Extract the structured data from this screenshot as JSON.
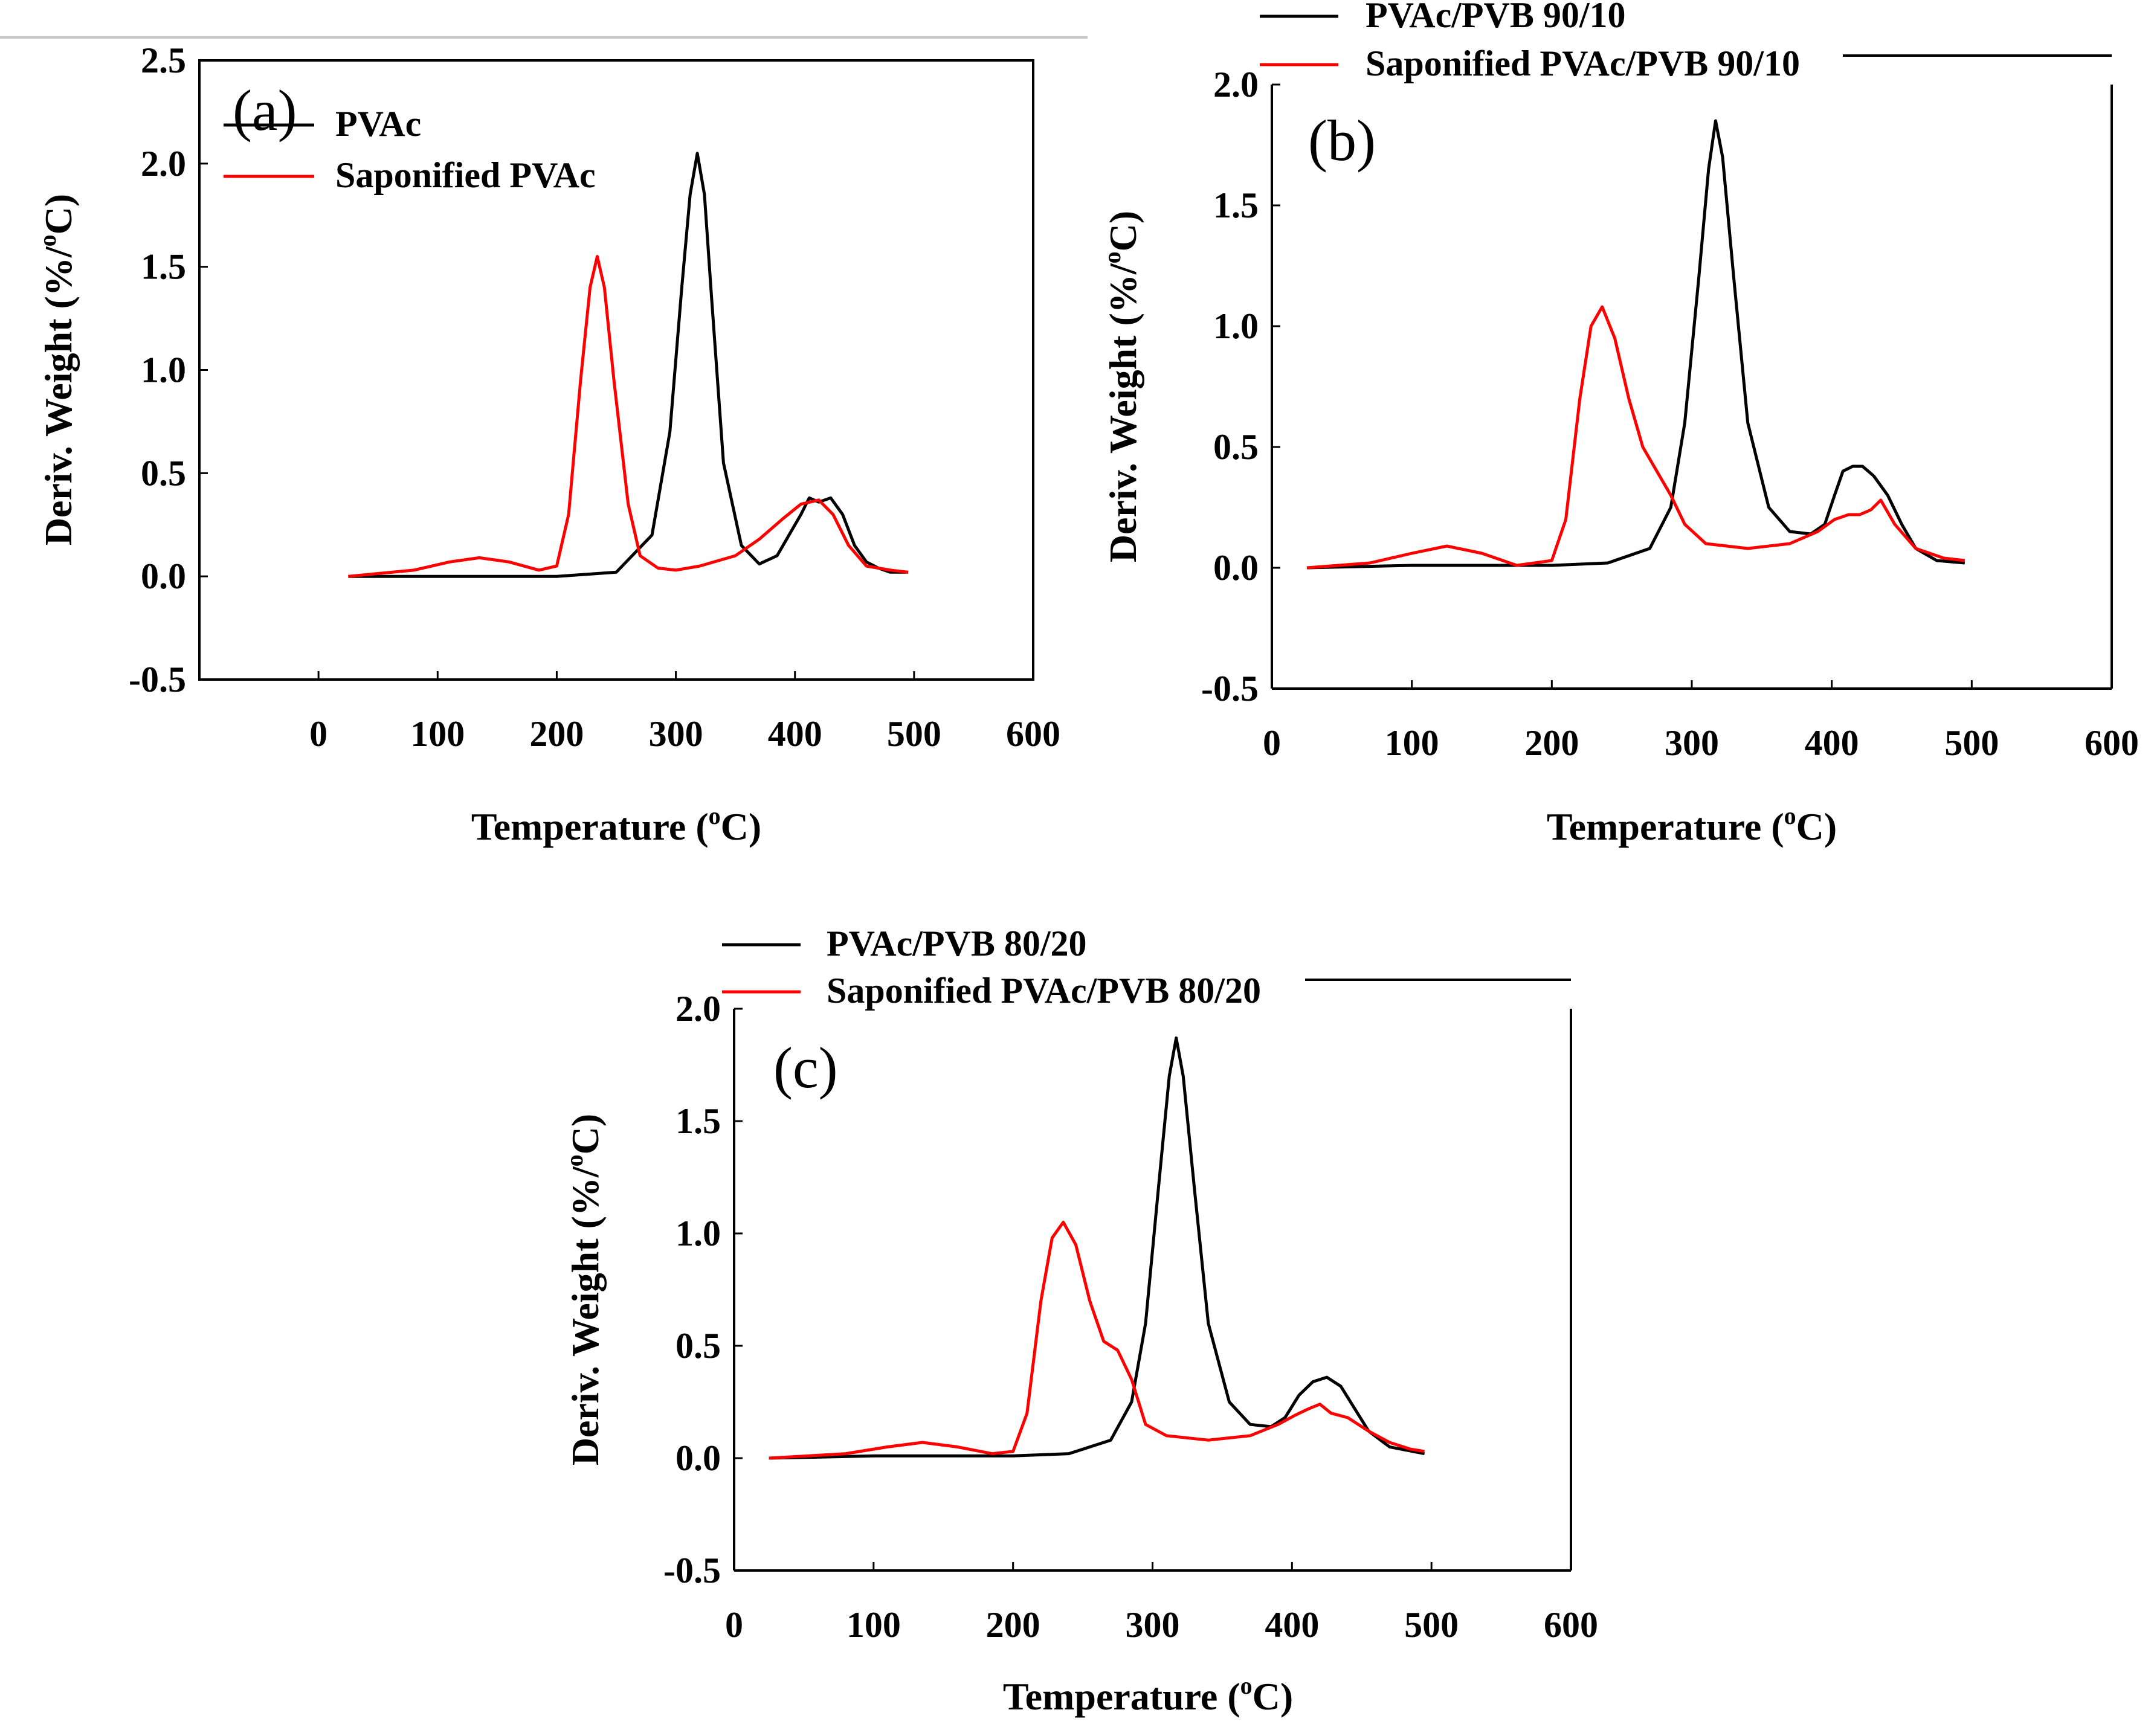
{
  "chart_data": [
    {
      "panel": "(a)",
      "type": "line",
      "xlabel": "Temperature (",
      "xlabel_sup": "o",
      "xlabel_tail": "C)",
      "ylabel": "Deriv. Weight (%/",
      "ylabel_sup": "o",
      "ylabel_tail": "C)",
      "xlim": [
        -100,
        600
      ],
      "ylim": [
        -0.5,
        2.5
      ],
      "xticks": [
        0,
        100,
        200,
        300,
        400,
        500,
        600
      ],
      "xtick_labels": [
        "0",
        "100",
        "200",
        "300",
        "400",
        "500",
        "600"
      ],
      "yticks": [
        -0.5,
        0.0,
        0.5,
        1.0,
        1.5,
        2.0,
        2.5
      ],
      "ytick_labels": [
        "-0.5",
        "0.0",
        "0.5",
        "1.0",
        "1.5",
        "2.0",
        "2.5"
      ],
      "legend_position": "top-left",
      "series": [
        {
          "name": "PVAc",
          "color": "#000000",
          "x": [
            25,
            100,
            200,
            250,
            280,
            295,
            305,
            312,
            318,
            324,
            330,
            340,
            355,
            370,
            385,
            395,
            405,
            412,
            420,
            430,
            440,
            450,
            460,
            470,
            480,
            495
          ],
          "y": [
            0.0,
            0.0,
            0.0,
            0.02,
            0.2,
            0.7,
            1.4,
            1.85,
            2.05,
            1.85,
            1.35,
            0.55,
            0.15,
            0.06,
            0.1,
            0.2,
            0.3,
            0.38,
            0.36,
            0.38,
            0.3,
            0.15,
            0.07,
            0.04,
            0.02,
            0.02
          ]
        },
        {
          "name": "Saponified PVAc",
          "color": "#ff0000",
          "x": [
            25,
            80,
            110,
            135,
            160,
            185,
            200,
            210,
            220,
            228,
            234,
            240,
            248,
            260,
            270,
            285,
            300,
            320,
            350,
            370,
            390,
            405,
            420,
            432,
            445,
            460,
            480,
            495
          ],
          "y": [
            0.0,
            0.03,
            0.07,
            0.09,
            0.07,
            0.03,
            0.05,
            0.3,
            0.95,
            1.4,
            1.55,
            1.4,
            0.95,
            0.35,
            0.1,
            0.04,
            0.03,
            0.05,
            0.1,
            0.18,
            0.28,
            0.35,
            0.37,
            0.3,
            0.15,
            0.05,
            0.03,
            0.02
          ]
        }
      ]
    },
    {
      "panel": "(b)",
      "type": "line",
      "xlabel": "Temperature (",
      "xlabel_sup": "o",
      "xlabel_tail": "C)",
      "ylabel": "Deriv. Weight (%/",
      "ylabel_sup": "o",
      "ylabel_tail": "C)",
      "xlim": [
        0,
        600
      ],
      "ylim": [
        -0.5,
        2.0
      ],
      "xticks": [
        0,
        100,
        200,
        300,
        400,
        500,
        600
      ],
      "xtick_labels": [
        "0",
        "100",
        "200",
        "300",
        "400",
        "500",
        "600"
      ],
      "yticks": [
        -0.5,
        0.0,
        0.5,
        1.0,
        1.5,
        2.0
      ],
      "ytick_labels": [
        "-0.5",
        "0.0",
        "0.5",
        "1.0",
        "1.5",
        "2.0"
      ],
      "legend_position": "above-top-left",
      "series": [
        {
          "name": "PVAc/PVB 90/10",
          "color": "#000000",
          "x": [
            25,
            100,
            200,
            240,
            270,
            285,
            295,
            305,
            312,
            317,
            322,
            330,
            340,
            355,
            370,
            385,
            395,
            402,
            408,
            415,
            422,
            430,
            440,
            450,
            460,
            475,
            495
          ],
          "y": [
            0.0,
            0.01,
            0.01,
            0.02,
            0.08,
            0.25,
            0.6,
            1.2,
            1.65,
            1.85,
            1.7,
            1.2,
            0.6,
            0.25,
            0.15,
            0.14,
            0.18,
            0.3,
            0.4,
            0.42,
            0.42,
            0.38,
            0.3,
            0.18,
            0.08,
            0.03,
            0.02
          ]
        },
        {
          "name": "Saponified PVAc/PVB 90/10",
          "color": "#ff0000",
          "x": [
            25,
            70,
            100,
            125,
            150,
            175,
            200,
            210,
            220,
            228,
            236,
            245,
            255,
            265,
            275,
            285,
            295,
            310,
            340,
            370,
            390,
            402,
            412,
            420,
            428,
            435,
            445,
            460,
            480,
            495
          ],
          "y": [
            0.0,
            0.02,
            0.06,
            0.09,
            0.06,
            0.01,
            0.03,
            0.2,
            0.7,
            1.0,
            1.08,
            0.95,
            0.7,
            0.5,
            0.4,
            0.3,
            0.18,
            0.1,
            0.08,
            0.1,
            0.15,
            0.2,
            0.22,
            0.22,
            0.24,
            0.28,
            0.18,
            0.08,
            0.04,
            0.03
          ]
        }
      ]
    },
    {
      "panel": "(c)",
      "type": "line",
      "xlabel": "Temperature (",
      "xlabel_sup": "o",
      "xlabel_tail": "C)",
      "ylabel": "Deriv. Weight (%/",
      "ylabel_sup": "o",
      "ylabel_tail": "C)",
      "xlim": [
        0,
        600
      ],
      "ylim": [
        -0.5,
        2.0
      ],
      "xticks": [
        0,
        100,
        200,
        300,
        400,
        500,
        600
      ],
      "xtick_labels": [
        "0",
        "100",
        "200",
        "300",
        "400",
        "500",
        "600"
      ],
      "yticks": [
        -0.5,
        0.0,
        0.5,
        1.0,
        1.5,
        2.0
      ],
      "ytick_labels": [
        "-0.5",
        "0.0",
        "0.5",
        "1.0",
        "1.5",
        "2.0"
      ],
      "legend_position": "above-top-left",
      "series": [
        {
          "name": "PVAc/PVB 80/20",
          "color": "#000000",
          "x": [
            25,
            100,
            200,
            240,
            270,
            285,
            295,
            305,
            312,
            317,
            322,
            330,
            340,
            355,
            370,
            385,
            395,
            405,
            415,
            425,
            435,
            445,
            455,
            470,
            495
          ],
          "y": [
            0.0,
            0.01,
            0.01,
            0.02,
            0.08,
            0.25,
            0.6,
            1.25,
            1.7,
            1.87,
            1.7,
            1.2,
            0.6,
            0.25,
            0.15,
            0.14,
            0.18,
            0.28,
            0.34,
            0.36,
            0.32,
            0.22,
            0.12,
            0.05,
            0.02
          ]
        },
        {
          "name": "Saponified PVAc/PVB 80/20",
          "color": "#ff0000",
          "x": [
            25,
            80,
            110,
            135,
            160,
            185,
            200,
            210,
            220,
            228,
            236,
            245,
            255,
            265,
            275,
            285,
            295,
            310,
            340,
            370,
            390,
            402,
            412,
            420,
            428,
            440,
            455,
            470,
            485,
            495
          ],
          "y": [
            0.0,
            0.02,
            0.05,
            0.07,
            0.05,
            0.02,
            0.03,
            0.2,
            0.7,
            0.98,
            1.05,
            0.95,
            0.7,
            0.52,
            0.48,
            0.35,
            0.15,
            0.1,
            0.08,
            0.1,
            0.15,
            0.19,
            0.22,
            0.24,
            0.2,
            0.18,
            0.12,
            0.07,
            0.04,
            0.03
          ]
        }
      ]
    }
  ]
}
